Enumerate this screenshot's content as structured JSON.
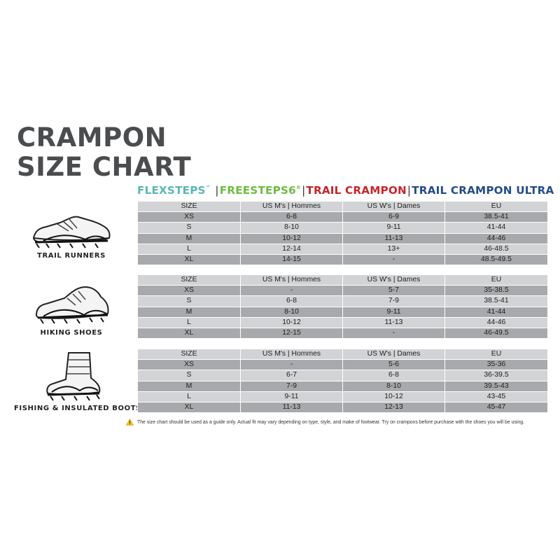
{
  "title": {
    "line1": "CRAMPON",
    "line2": "SIZE CHART"
  },
  "brands": {
    "flexsteps": "FLEXSTEPS",
    "flexsteps_mark": "™",
    "freesteps": "FREESTEPS6",
    "freesteps_mark": "®",
    "trail_crampon": "TRAIL CRAMPON",
    "trail_crampon_ultra": "TRAIL CRAMPON ULTRA",
    "separator": "|",
    "colors": {
      "flexsteps": "#5ab7b5",
      "freesteps": "#6cbd3f",
      "trail_crampon": "#c8262c",
      "trail_crampon_ultra": "#244d8a"
    }
  },
  "columns": [
    "SIZE",
    "US M's | Hommes",
    "US W's | Dames",
    "EU"
  ],
  "sections": [
    {
      "label": "TRAIL RUNNERS",
      "icon": "trail-runner-shoe-icon",
      "rows": [
        [
          "XS",
          "6-8",
          "6-9",
          "38.5-41"
        ],
        [
          "S",
          "8-10",
          "9-11",
          "41-44"
        ],
        [
          "M",
          "10-12",
          "11-13",
          "44-46"
        ],
        [
          "L",
          "12-14",
          "13+",
          "46-48.5"
        ],
        [
          "XL",
          "14-15",
          "-",
          "48.5-49.5"
        ]
      ]
    },
    {
      "label": "HIKING SHOES",
      "icon": "hiking-shoe-icon",
      "rows": [
        [
          "XS",
          "-",
          "5-7",
          "35-38.5"
        ],
        [
          "S",
          "6-8",
          "7-9",
          "38.5-41"
        ],
        [
          "M",
          "8-10",
          "9-11",
          "41-44"
        ],
        [
          "L",
          "10-12",
          "11-13",
          "44-46"
        ],
        [
          "XL",
          "12-15",
          "-",
          "46-49.5"
        ]
      ]
    },
    {
      "label": "FISHING & INSULATED BOOTS",
      "icon": "insulated-boot-icon",
      "rows": [
        [
          "XS",
          "-",
          "5-6",
          "35-36"
        ],
        [
          "S",
          "6-7",
          "6-8",
          "36-39.5"
        ],
        [
          "M",
          "7-9",
          "8-10",
          "39.5-43"
        ],
        [
          "L",
          "9-11",
          "10-12",
          "43-45"
        ],
        [
          "XL",
          "11-13",
          "12-13",
          "45-47"
        ]
      ]
    }
  ],
  "note": "The size chart should be used as a guide only. Actual fit may vary depending on type, style, and make of footwear. Try on crampons before purchase with the shoes you will be using.",
  "note_icon": "warning-icon"
}
